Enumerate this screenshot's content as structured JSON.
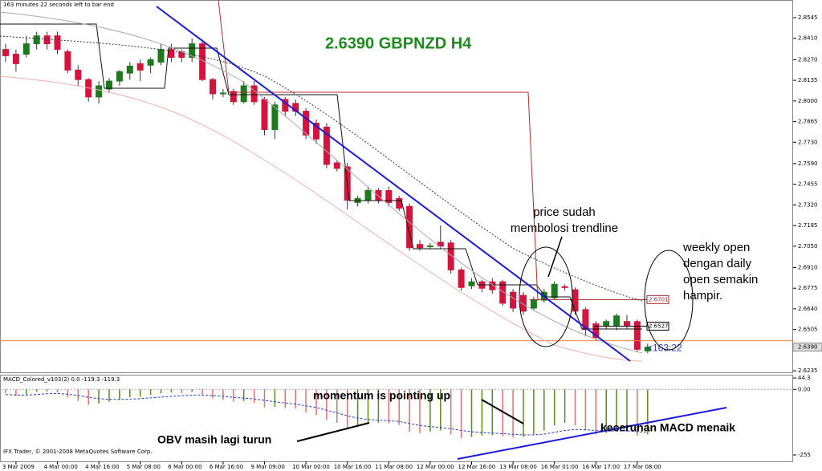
{
  "chart_data": [
    {
      "type": "candlestick",
      "title": "2.6390 GBPNZD H4",
      "timer": "163 minutes 22 seconds left to bar end",
      "countdown": "<163:22",
      "copyright": "IFX Trader, © 2001-2008 MetaQuotes Software Corp.",
      "annotations": [
        [
          "price sudah",
          "membolosi trendline"
        ],
        [
          "weekly open",
          "dengan daily",
          "open semakin",
          "hampir."
        ],
        [
          "momentum is pointing up"
        ],
        [
          "OBV masih lagi turun"
        ],
        [
          "kecerunan MACD menaik"
        ]
      ],
      "categories": [
        null,
        "3 Mar 2009",
        null,
        null,
        null,
        "4 Mar 00:00",
        null,
        null,
        null,
        "4 Mar 16:00",
        null,
        null,
        null,
        "5 Mar 08:00",
        null,
        null,
        null,
        "6 Mar 00:00",
        null,
        null,
        null,
        "6 Mar 16:00",
        null,
        null,
        null,
        "9 Mar 09:00",
        null,
        null,
        null,
        "10 Mar 00:00",
        null,
        null,
        null,
        "10 Mar 16:00",
        null,
        null,
        null,
        "11 Mar 08:00",
        null,
        null,
        null,
        "12 Mar 00:00",
        null,
        null,
        null,
        "12 Mar 16:00",
        null,
        null,
        null,
        "13 Mar 08:00",
        null,
        null,
        null,
        "16 Mar 01:00",
        null,
        null,
        null,
        "16 Mar 17:00",
        null,
        null,
        null,
        "17 Mar 08:00",
        null
      ],
      "open": [
        2.8337,
        2.8306,
        2.8306,
        2.8374,
        2.8426,
        2.8426,
        2.8322,
        2.8202,
        2.814,
        2.8026,
        2.8078,
        2.813,
        2.8182,
        2.8244,
        2.8234,
        2.8254,
        2.8337,
        2.8322,
        2.8285,
        2.8374,
        2.814,
        2.8047,
        2.8062,
        2.7995,
        2.8099,
        2.801,
        2.7813,
        2.801,
        2.7984,
        2.7933,
        2.7855,
        2.7829,
        2.7595,
        2.7569,
        2.7336,
        2.7351,
        2.7414,
        2.7414,
        2.7362,
        2.731,
        2.7061,
        2.705,
        2.7076,
        2.7071,
        2.6895,
        2.6791,
        2.6817,
        2.6817,
        2.6817,
        2.6749,
        2.6728,
        2.6645,
        2.6697,
        2.6713,
        2.6785,
        2.6765,
        2.6635,
        2.6542,
        2.6531,
        2.6531,
        2.6557,
        2.6557,
        2.6365
      ],
      "high": [
        2.8374,
        2.8337,
        2.8426,
        2.8453,
        2.8453,
        2.8453,
        2.8337,
        2.8234,
        2.815,
        2.813,
        2.815,
        2.8202,
        2.8254,
        2.827,
        2.8285,
        2.8374,
        2.8374,
        2.8337,
        2.841,
        2.84,
        2.815,
        2.8078,
        2.8078,
        2.813,
        2.813,
        2.8026,
        2.7995,
        2.8026,
        2.801,
        2.7953,
        2.788,
        2.7855,
        2.761,
        2.7595,
        2.738,
        2.744,
        2.743,
        2.744,
        2.738,
        2.733,
        2.709,
        2.707,
        2.7185,
        2.709,
        2.691,
        2.684,
        2.683,
        2.684,
        2.683,
        2.677,
        2.675,
        2.672,
        2.677,
        2.682,
        2.68,
        2.678,
        2.665,
        2.656,
        2.657,
        2.661,
        2.66,
        2.657,
        2.6412
      ],
      "low": [
        2.8254,
        2.8192,
        2.8285,
        2.8337,
        2.8337,
        2.8306,
        2.8182,
        2.8099,
        2.7995,
        2.7984,
        2.8052,
        2.8099,
        2.814,
        2.813,
        2.8182,
        2.8234,
        2.8254,
        2.8254,
        2.8254,
        2.813,
        2.801,
        2.8026,
        2.7974,
        2.7984,
        2.7974,
        2.7777,
        2.7751,
        2.7901,
        2.7901,
        2.7751,
        2.772,
        2.756,
        2.754,
        2.729,
        2.731,
        2.733,
        2.733,
        2.731,
        2.728,
        2.702,
        2.702,
        2.703,
        2.703,
        2.687,
        2.676,
        2.677,
        2.675,
        2.674,
        2.666,
        2.662,
        2.66,
        2.663,
        2.668,
        2.67,
        2.676,
        2.66,
        2.646,
        2.643,
        2.651,
        2.65,
        2.651,
        2.636,
        2.635
      ],
      "close": [
        2.8296,
        2.8244,
        2.8374,
        2.8426,
        2.8374,
        2.8337,
        2.8202,
        2.814,
        2.8026,
        2.8099,
        2.813,
        2.8192,
        2.8228,
        2.8202,
        2.827,
        2.8337,
        2.8285,
        2.8285,
        2.8374,
        2.814,
        2.8047,
        2.8052,
        2.7995,
        2.8099,
        2.7995,
        2.7813,
        2.7974,
        2.7933,
        2.7933,
        2.7777,
        2.7751,
        2.7585,
        2.7559,
        2.7351,
        2.7362,
        2.7414,
        2.7351,
        2.7336,
        2.7299,
        2.704,
        2.704,
        2.7052,
        2.705,
        2.6895,
        2.678,
        2.6817,
        2.6775,
        2.6765,
        2.6677,
        2.6645,
        2.6625,
        2.6697,
        2.6749,
        2.6801,
        2.678,
        2.6625,
        2.6505,
        2.6453,
        2.6557,
        2.6594,
        2.6531,
        2.6375,
        2.639
      ],
      "up_color": "#1f7a1f",
      "down_color": "#d4143c",
      "levels": [
        {
          "value": 2.6701,
          "color": "#a52a2a"
        },
        {
          "value": 2.6527,
          "color": "#000000"
        }
      ],
      "bid": {
        "value": 2.639,
        "label": "2.6390"
      },
      "bid_color": "#f08040",
      "ylim": [
        2.6225,
        2.865
      ],
      "yticks": [
        2.8545,
        {
          "value": 2.841,
          "label": "2.8410"
        },
        {
          "value": 2.827,
          "label": "2.8270"
        },
        2.8135,
        {
          "value": 2.8,
          "label": "2.8000"
        },
        2.7865,
        {
          "value": 2.773,
          "label": "2.7730"
        },
        {
          "value": 2.759,
          "label": "2.7590"
        },
        2.7455,
        {
          "value": 2.732,
          "label": "2.7320"
        },
        2.7185,
        {
          "value": 2.705,
          "label": "2.7050"
        },
        {
          "value": 2.691,
          "label": "2.6910"
        },
        2.6775,
        {
          "value": 2.664,
          "label": "2.6640"
        },
        2.6505,
        2.6235
      ]
    },
    {
      "type": "histogram-macd",
      "title": "MACD_Colored_v103(2) 0.0 -119.3 -119.3",
      "values": [
        -15,
        -25,
        -20,
        -10,
        -8,
        -12,
        -30,
        -45,
        -60,
        -55,
        -48,
        -40,
        -30,
        -28,
        -22,
        -15,
        -12,
        -14,
        -10,
        -20,
        -35,
        -40,
        -48,
        -45,
        -52,
        -70,
        -68,
        -72,
        -75,
        -90,
        -100,
        -120,
        -130,
        -150,
        -145,
        -135,
        -130,
        -132,
        -138,
        -165,
        -170,
        -165,
        -160,
        -175,
        -190,
        -185,
        -180,
        -178,
        -182,
        -188,
        -185,
        -175,
        -160,
        -140,
        -130,
        -140,
        -160,
        -175,
        -170,
        -160,
        -158,
        -180,
        -175
      ],
      "signal": [
        -20,
        -22,
        -22,
        -20,
        -17,
        -16,
        -19,
        -24,
        -31,
        -36,
        -39,
        -39,
        -38,
        -36,
        -33,
        -30,
        -27,
        -25,
        -22,
        -22,
        -24,
        -27,
        -31,
        -34,
        -37,
        -43,
        -48,
        -53,
        -57,
        -64,
        -71,
        -81,
        -91,
        -103,
        -112,
        -117,
        -120,
        -122,
        -125,
        -133,
        -140,
        -145,
        -148,
        -153,
        -160,
        -165,
        -168,
        -170,
        -172,
        -175,
        -177,
        -177,
        -174,
        -167,
        -160,
        -156,
        -157,
        -160,
        -162,
        -162,
        -161,
        -165,
        -168
      ],
      "up_color": "#5a8a1a",
      "down_color": "#e07070",
      "signal_color": "#2040d0",
      "ylim": [
        -280,
        57
      ],
      "yticks": [
        44.3,
        {
          "value": 0,
          "label": "0.00"
        },
        -255
      ]
    }
  ]
}
